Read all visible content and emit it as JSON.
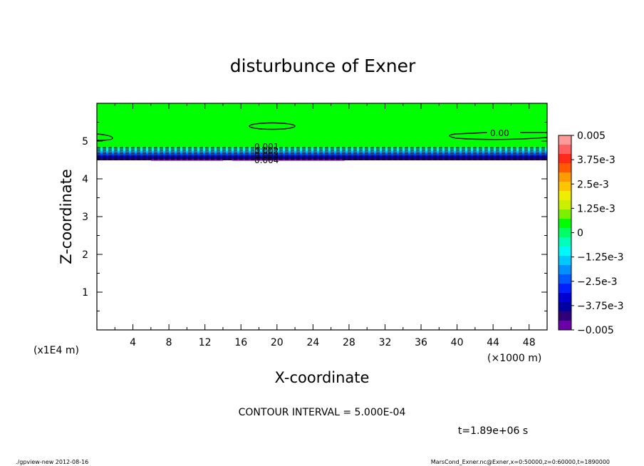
{
  "chart_data": {
    "type": "heatmap",
    "title": "disturbunce of Exner",
    "xlabel": "X-coordinate",
    "ylabel": "Z-coordinate",
    "x_unit": "(×1000 m)",
    "y_unit": "(x1E4 m)",
    "x_ticks": [
      4,
      8,
      12,
      16,
      20,
      24,
      28,
      32,
      36,
      40,
      44,
      48
    ],
    "y_ticks": [
      1,
      2,
      3,
      4,
      5
    ],
    "xlim": [
      0,
      50
    ],
    "ylim": [
      0,
      6
    ],
    "colorbar": {
      "labels": [
        "0.005",
        "3.75e-3",
        "2.5e-3",
        "1.25e-3",
        "0",
        "−1.25e-3",
        "−2.5e-3",
        "−3.75e-3",
        "−0.005"
      ],
      "values": [
        0.005,
        0.00375,
        0.0025,
        0.00125,
        0,
        -0.00125,
        -0.0025,
        -0.00375,
        -0.005
      ],
      "colors": [
        "#ff9a9a",
        "#ff6060",
        "#ff2a1a",
        "#ff5a00",
        "#ff9a00",
        "#ffc400",
        "#f0ee00",
        "#c8f000",
        "#7cf000",
        "#00ff00",
        "#00ff66",
        "#00ffb8",
        "#00f8f8",
        "#00c8ff",
        "#0090ff",
        "#0058ff",
        "#0020ff",
        "#0000d0",
        "#0000a0",
        "#30007a",
        "#6a00a8"
      ]
    },
    "contour_labels": [
      "0.00",
      "0.001",
      "0.002",
      "0.003",
      "0.004"
    ],
    "contour_interval_text": "CONTOUR INTERVAL = 5.000E-04",
    "time_text": "t=1.89e+06 s"
  },
  "footer": {
    "left": "./gpview-new  2012-08-16",
    "right": "MarsCond_Exner.nc@Exner,x=0:50000,z=0:60000,t=1890000"
  }
}
